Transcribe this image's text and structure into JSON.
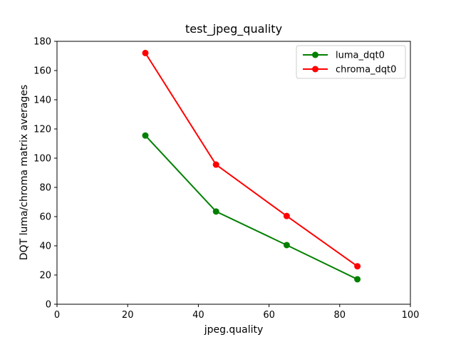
{
  "figure": {
    "background": "#ffffff",
    "frame_color": "#000000"
  },
  "chart_data": {
    "type": "line",
    "title": "test_jpeg_quality",
    "xlabel": "jpeg.quality",
    "ylabel": "DQT luma/chroma matrix averages",
    "x": [
      25,
      45,
      65,
      85
    ],
    "series": [
      {
        "name": "luma_dqt0",
        "color": "#008000",
        "marker": "o",
        "values": [
          115.5,
          63.5,
          40.5,
          17.1
        ]
      },
      {
        "name": "chroma_dqt0",
        "color": "#ff0000",
        "marker": "o",
        "values": [
          172.0,
          95.6,
          60.4,
          26.0
        ]
      }
    ],
    "xlim": [
      0,
      100
    ],
    "ylim": [
      0,
      180
    ],
    "xticks": [
      0,
      20,
      40,
      60,
      80,
      100
    ],
    "yticks": [
      0,
      20,
      40,
      60,
      80,
      100,
      120,
      140,
      160,
      180
    ],
    "grid": false,
    "legend": {
      "position": "upper right",
      "entries": [
        "luma_dqt0",
        "chroma_dqt0"
      ]
    }
  }
}
